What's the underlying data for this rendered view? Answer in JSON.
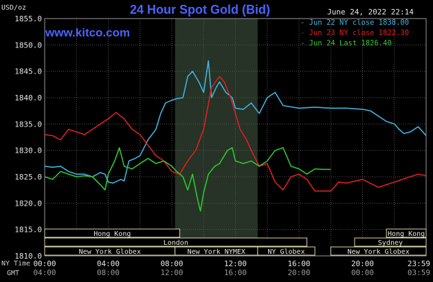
{
  "header": {
    "title": "24 Hour Spot Gold (Bid)",
    "site": "www.kitco.com",
    "datestamp": "June 24, 2022 22:14",
    "y_unit": "USD/oz"
  },
  "colors": {
    "background": "#000000",
    "grid": "#5a5a5a",
    "axis_text": "#e6e6e6",
    "title": "#4a64ff",
    "market_open_shade": "#263326",
    "session_bar_fill": "#000000",
    "session_bar_border": "#e0d9a8",
    "session_text": "#e6e6e6"
  },
  "legend": [
    {
      "label": "Jun 22 NY close 1838.00",
      "color": "#40b4e0"
    },
    {
      "label": "Jun 23 NY close 1822.30",
      "color": "#e02020"
    },
    {
      "label": "Jun 24 Last 1826.40",
      "color": "#30c830"
    }
  ],
  "sessions": {
    "row1": [
      {
        "name": "Hong Kong",
        "start": 0,
        "end": 8.5
      },
      {
        "name": "Hong Kong",
        "start": 21.5,
        "end": 24
      }
    ],
    "row2": [
      {
        "name": "London",
        "start": 0,
        "end": 16.5
      },
      {
        "name": "Sydney",
        "start": 19.5,
        "end": 24
      }
    ],
    "row3": [
      {
        "name": "New York Globex",
        "start": 0,
        "end": 8.2
      },
      {
        "name": "New York NYMEX",
        "start": 8.2,
        "end": 13.4
      },
      {
        "name": "NY Globex",
        "start": 13.4,
        "end": 17
      },
      {
        "name": "New York Globex",
        "start": 18,
        "end": 24
      }
    ]
  },
  "time_axis": {
    "ny_label": "NY Time",
    "gmt_label": "GMT",
    "ny_ticks": [
      "00:00",
      "04:00",
      "08:00",
      "12:00",
      "16:00",
      "20:00",
      "23:59"
    ],
    "gmt_ticks": [
      "04:00",
      "08:00",
      "12:00",
      "16:00",
      "20:00",
      "00:00",
      "03:59"
    ]
  },
  "chart_data": {
    "type": "line",
    "title": "24 Hour Spot Gold (Bid)",
    "ylabel": "USD/oz",
    "xlabel": "NY Time",
    "x_range": [
      0,
      24
    ],
    "ylim": [
      1810,
      1855
    ],
    "yticks": [
      "1810.0",
      "1815.0",
      "1820.0",
      "1825.0",
      "1830.0",
      "1835.0",
      "1840.0",
      "1845.0",
      "1850.0",
      "1855.0"
    ],
    "ytick_values": [
      1810,
      1815,
      1820,
      1825,
      1830,
      1835,
      1840,
      1845,
      1850,
      1855
    ],
    "shaded_region": [
      8.2,
      13.4
    ],
    "grid": true,
    "legend_position": "top-right",
    "series": [
      {
        "name": "Jun 22 NY close 1838.00",
        "color": "#40b4e0",
        "points": [
          [
            0,
            1827
          ],
          [
            0.5,
            1826.8
          ],
          [
            1,
            1827
          ],
          [
            1.5,
            1826
          ],
          [
            2,
            1825.5
          ],
          [
            2.5,
            1825.5
          ],
          [
            3,
            1825
          ],
          [
            3.5,
            1825.8
          ],
          [
            3.8,
            1825.5
          ],
          [
            4,
            1824
          ],
          [
            4.3,
            1823.8
          ],
          [
            4.8,
            1824.5
          ],
          [
            5,
            1824.2
          ],
          [
            5.3,
            1828
          ],
          [
            5.7,
            1828.5
          ],
          [
            6,
            1829
          ],
          [
            6.5,
            1832
          ],
          [
            7,
            1834
          ],
          [
            7.3,
            1837
          ],
          [
            7.6,
            1839
          ],
          [
            8,
            1839.5
          ],
          [
            8.3,
            1839.8
          ],
          [
            8.7,
            1840
          ],
          [
            9,
            1844
          ],
          [
            9.3,
            1845
          ],
          [
            9.7,
            1843
          ],
          [
            10,
            1841
          ],
          [
            10.3,
            1847
          ],
          [
            10.5,
            1840
          ],
          [
            10.8,
            1842
          ],
          [
            11,
            1843
          ],
          [
            11.4,
            1841
          ],
          [
            11.8,
            1840
          ],
          [
            12,
            1838
          ],
          [
            12.5,
            1837.8
          ],
          [
            13,
            1839
          ],
          [
            13.5,
            1837
          ],
          [
            14,
            1840
          ],
          [
            14.5,
            1841
          ],
          [
            15,
            1838.5
          ],
          [
            16,
            1838
          ],
          [
            17,
            1838.2
          ],
          [
            18,
            1838
          ],
          [
            19,
            1838
          ],
          [
            20,
            1837.8
          ],
          [
            20.5,
            1837.5
          ],
          [
            21,
            1836.5
          ],
          [
            21.5,
            1835.5
          ],
          [
            22,
            1835
          ],
          [
            22.3,
            1834
          ],
          [
            22.6,
            1833.2
          ],
          [
            23,
            1833.5
          ],
          [
            23.5,
            1834.5
          ],
          [
            24,
            1832.8
          ]
        ]
      },
      {
        "name": "Jun 23 NY close 1822.30",
        "color": "#e02020",
        "points": [
          [
            0,
            1833
          ],
          [
            0.5,
            1832.8
          ],
          [
            1,
            1832
          ],
          [
            1.5,
            1834
          ],
          [
            2,
            1833.5
          ],
          [
            2.5,
            1833
          ],
          [
            3,
            1834
          ],
          [
            3.5,
            1835
          ],
          [
            4,
            1836
          ],
          [
            4.5,
            1837.2
          ],
          [
            5,
            1836
          ],
          [
            5.5,
            1834
          ],
          [
            6,
            1833
          ],
          [
            6.5,
            1831
          ],
          [
            7,
            1829
          ],
          [
            7.5,
            1828
          ],
          [
            8,
            1826
          ],
          [
            8.5,
            1825.5
          ],
          [
            9,
            1828
          ],
          [
            9.5,
            1830
          ],
          [
            10,
            1834
          ],
          [
            10.5,
            1842
          ],
          [
            11,
            1844
          ],
          [
            11.3,
            1843
          ],
          [
            11.7,
            1840
          ],
          [
            12,
            1837
          ],
          [
            12.3,
            1834
          ],
          [
            12.7,
            1832
          ],
          [
            13,
            1830
          ],
          [
            13.5,
            1827
          ],
          [
            14,
            1827.5
          ],
          [
            14.5,
            1824
          ],
          [
            15,
            1822.5
          ],
          [
            15.5,
            1825
          ],
          [
            16,
            1825.5
          ],
          [
            16.5,
            1824.5
          ],
          [
            17,
            1822.3
          ],
          [
            18,
            1822.3
          ],
          [
            18.5,
            1824
          ],
          [
            19,
            1823.8
          ],
          [
            20,
            1824.5
          ],
          [
            21,
            1823
          ],
          [
            21.5,
            1823.5
          ],
          [
            22,
            1824
          ],
          [
            22.5,
            1824.5
          ],
          [
            23,
            1825
          ],
          [
            23.5,
            1825.5
          ],
          [
            24,
            1825.2
          ]
        ]
      },
      {
        "name": "Jun 24 Last 1826.40",
        "color": "#30c830",
        "points": [
          [
            0,
            1825
          ],
          [
            0.5,
            1824.5
          ],
          [
            1,
            1826
          ],
          [
            1.5,
            1825.5
          ],
          [
            2,
            1825
          ],
          [
            2.5,
            1825.2
          ],
          [
            3,
            1825
          ],
          [
            3.5,
            1823.5
          ],
          [
            3.8,
            1822.5
          ],
          [
            4,
            1825.5
          ],
          [
            4.4,
            1828
          ],
          [
            4.7,
            1830.5
          ],
          [
            5,
            1827
          ],
          [
            5.5,
            1826.5
          ],
          [
            6,
            1827.5
          ],
          [
            6.5,
            1828.5
          ],
          [
            7,
            1827.5
          ],
          [
            7.5,
            1828
          ],
          [
            8,
            1827
          ],
          [
            8.3,
            1826
          ],
          [
            8.7,
            1825
          ],
          [
            9,
            1822.5
          ],
          [
            9.3,
            1825.5
          ],
          [
            9.6,
            1821
          ],
          [
            9.8,
            1818.5
          ],
          [
            10,
            1822
          ],
          [
            10.3,
            1825.5
          ],
          [
            10.7,
            1827
          ],
          [
            11,
            1827.5
          ],
          [
            11.5,
            1830
          ],
          [
            11.8,
            1830.5
          ],
          [
            12,
            1828
          ],
          [
            12.5,
            1827.5
          ],
          [
            13,
            1828
          ],
          [
            13.5,
            1827
          ],
          [
            14,
            1828
          ],
          [
            14.5,
            1830
          ],
          [
            15,
            1830.5
          ],
          [
            15.5,
            1827
          ],
          [
            16,
            1826.5
          ],
          [
            16.5,
            1825.5
          ],
          [
            17,
            1826.5
          ],
          [
            17.5,
            1826.4
          ],
          [
            18,
            1826.4
          ]
        ]
      }
    ]
  }
}
